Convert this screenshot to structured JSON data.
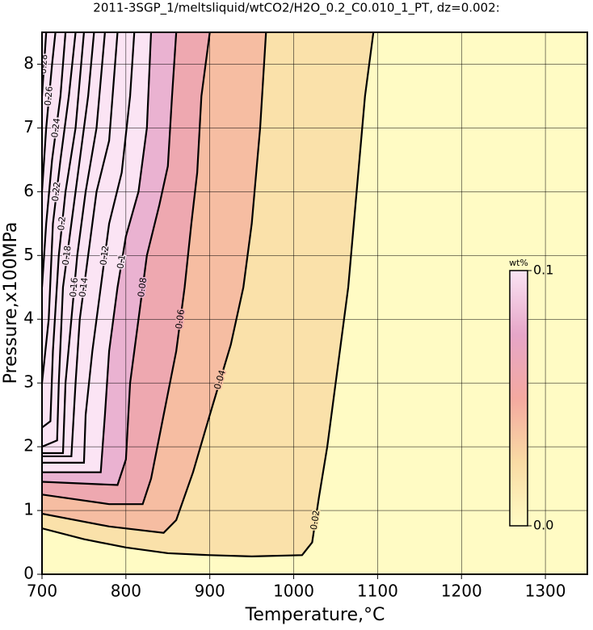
{
  "chart_data": {
    "type": "contour",
    "title": "2011-3SGP_1/meltsliquid/wtCO2/H2O_0.2_C0.010_1_PT, dz=0.002:",
    "x_label": "Temperature,°C",
    "y_label": "Pressure,x100MPa",
    "xlim": [
      700,
      1350
    ],
    "ylim": [
      0,
      8.5
    ],
    "xticks": [
      700,
      800,
      900,
      1000,
      1100,
      1200,
      1300
    ],
    "yticks": [
      0,
      1,
      2,
      3,
      4,
      5,
      6,
      7,
      8
    ],
    "grid": true,
    "colorbar": {
      "label": "wt%",
      "lim": [
        0,
        0.1
      ],
      "ticks": [
        {
          "value": 0,
          "label": "0.0"
        },
        0.1
      ],
      "colors": [
        "#fffbc4",
        "#f9dba4",
        "#f4a9a0",
        "#e6a6c8",
        "#fbe4f4"
      ]
    },
    "contours": [
      {
        "level": 0.02,
        "x": [
          700,
          750,
          800,
          850,
          900,
          950,
          1010,
          1022,
          1030,
          1040,
          1055,
          1065,
          1075,
          1085,
          1095
        ],
        "y": [
          0.72,
          0.55,
          0.42,
          0.33,
          0.3,
          0.28,
          0.3,
          0.5,
          1.2,
          2,
          3.5,
          4.5,
          6,
          7.5,
          8.5
        ]
      },
      {
        "level": 0.04,
        "x": [
          700,
          780,
          845,
          860,
          880,
          900,
          925,
          940,
          950,
          960,
          967
        ],
        "y": [
          0.95,
          0.75,
          0.65,
          0.85,
          1.6,
          2.5,
          3.6,
          4.5,
          5.5,
          7,
          8.5
        ]
      },
      {
        "level": 0.06,
        "x": [
          700,
          780,
          820,
          830,
          845,
          860,
          870,
          878,
          885,
          890,
          900
        ],
        "y": [
          1.25,
          1.1,
          1.1,
          1.5,
          2.5,
          3.5,
          4.5,
          5.5,
          6.3,
          7.5,
          8.5
        ]
      },
      {
        "level": 0.08,
        "x": [
          700,
          790,
          800,
          805,
          815,
          825,
          840,
          850,
          855,
          860
        ],
        "y": [
          1.45,
          1.4,
          1.8,
          3,
          4,
          5,
          5.8,
          6.4,
          7.5,
          8.5
        ]
      },
      {
        "level": 0.1,
        "x": [
          700,
          770,
          775,
          780,
          790,
          800,
          815,
          825,
          830
        ],
        "y": [
          1.6,
          1.6,
          2.5,
          3.5,
          4.5,
          5.3,
          6,
          7,
          8.5
        ]
      },
      {
        "level": 0.12,
        "x": [
          700,
          750,
          752,
          760,
          770,
          780,
          795,
          805,
          810
        ],
        "y": [
          1.75,
          1.75,
          2.5,
          3.5,
          4.5,
          5.5,
          6.3,
          7.5,
          8.5
        ]
      },
      {
        "level": 0.14,
        "x": [
          700,
          735,
          740,
          745,
          755,
          765,
          780,
          790
        ],
        "y": [
          1.85,
          1.85,
          3,
          4,
          5,
          6,
          6.8,
          8.5
        ]
      },
      {
        "level": 0.16,
        "x": [
          700,
          725,
          728,
          735,
          742,
          752,
          765,
          775
        ],
        "y": [
          1.9,
          1.9,
          3,
          4,
          5,
          6,
          7,
          8.5
        ]
      },
      {
        "level": 0.18,
        "x": [
          700,
          718,
          720,
          725,
          735,
          745,
          755,
          762
        ],
        "y": [
          2.0,
          2.1,
          3,
          4.5,
          5.5,
          6.5,
          7.5,
          8.5
        ]
      },
      {
        "level": 0.2,
        "x": [
          700,
          710,
          713,
          720,
          728,
          740,
          750
        ],
        "y": [
          2.3,
          2.4,
          3.5,
          5,
          6,
          7,
          8.5
        ]
      },
      {
        "level": 0.22,
        "x": [
          700,
          708,
          713,
          722,
          732,
          740
        ],
        "y": [
          3.0,
          4,
          5.5,
          6.5,
          7.5,
          8.5
        ]
      },
      {
        "level": 0.24,
        "x": [
          700,
          705,
          712,
          722,
          728
        ],
        "y": [
          4.5,
          5.5,
          6.5,
          7.5,
          8.5
        ]
      },
      {
        "level": 0.26,
        "x": [
          700,
          705,
          712,
          716
        ],
        "y": [
          6,
          7,
          8,
          8.5
        ]
      },
      {
        "level": 0.28,
        "x": [
          700,
          705
        ],
        "y": [
          7.5,
          8.5
        ]
      }
    ]
  }
}
